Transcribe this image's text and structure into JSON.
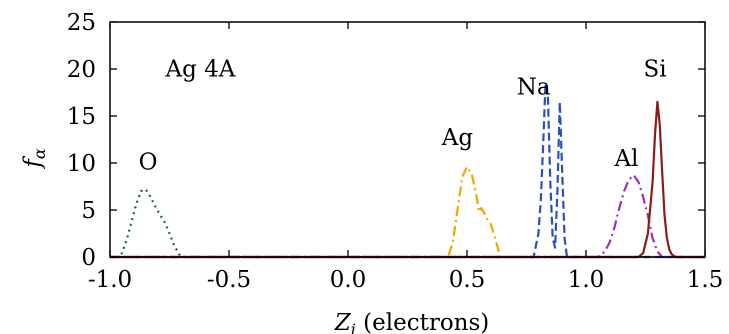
{
  "chart_data": {
    "type": "line",
    "xlabel": "Z_i (electrons)",
    "xlabel_main": "Z",
    "xlabel_sub": "i",
    "xlabel_rest": " (electrons)",
    "ylabel": "f_α",
    "ylabel_main": "f",
    "ylabel_sub": "α",
    "xlim": [
      -1.0,
      1.5
    ],
    "ylim": [
      0,
      25
    ],
    "xticks": [
      "-1.0",
      "-0.5",
      "0.0",
      "0.5",
      "1.0",
      "1.5"
    ],
    "xtick_values": [
      -1.0,
      -0.5,
      0.0,
      0.5,
      1.0,
      1.5
    ],
    "yticks": [
      "0",
      "5",
      "10",
      "15",
      "20",
      "25"
    ],
    "ytick_values": [
      0,
      5,
      10,
      15,
      20,
      25
    ],
    "grid": false,
    "legend": "none",
    "annotations": [
      {
        "text": "Ag 4A",
        "x": -0.62,
        "y": 19.2
      },
      {
        "text": "O",
        "x": -0.84,
        "y": 9.3
      },
      {
        "text": "Ag",
        "x": 0.46,
        "y": 11.9
      },
      {
        "text": "Na",
        "x": 0.78,
        "y": 17.3
      },
      {
        "text": "Al",
        "x": 1.17,
        "y": 9.7
      },
      {
        "text": "Si",
        "x": 1.29,
        "y": 19.2
      }
    ],
    "series": [
      {
        "name": "O",
        "color": "#1b6b2a",
        "dash": "2,4",
        "x": [
          -1.0,
          -0.97,
          -0.95,
          -0.93,
          -0.91,
          -0.89,
          -0.87,
          -0.85,
          -0.83,
          -0.81,
          -0.79,
          -0.77,
          -0.75,
          -0.73,
          -0.71,
          -0.69,
          -0.67,
          1.5
        ],
        "values": [
          0,
          0,
          0.4,
          1.8,
          3.7,
          5.6,
          7.0,
          7.2,
          6.4,
          5.4,
          4.5,
          3.7,
          2.5,
          1.2,
          0.3,
          0,
          0,
          0
        ]
      },
      {
        "name": "Ag",
        "color": "#f0a800",
        "dash": "10,4,2,4",
        "x": [
          -1.0,
          0.42,
          0.44,
          0.46,
          0.48,
          0.5,
          0.52,
          0.54,
          0.55,
          0.56,
          0.57,
          0.58,
          0.6,
          0.62,
          0.64,
          1.5
        ],
        "values": [
          0,
          0,
          1.5,
          5.0,
          8.5,
          9.6,
          8.8,
          6.5,
          4.8,
          5.2,
          4.8,
          4.2,
          3.5,
          1.8,
          0,
          0
        ]
      },
      {
        "name": "Na",
        "color": "#2a4fc4",
        "dash": "8,4",
        "x": [
          -1.0,
          0.78,
          0.8,
          0.81,
          0.82,
          0.83,
          0.84,
          0.85,
          0.86,
          0.87,
          0.88,
          0.89,
          0.9,
          0.91,
          0.92,
          1.5
        ],
        "values": [
          0,
          0,
          2.5,
          6.0,
          12.0,
          18.5,
          17.0,
          8.0,
          2.0,
          1.0,
          7.0,
          16.5,
          9.0,
          2.0,
          0,
          0
        ]
      },
      {
        "name": "Al",
        "color": "#9a2fc0",
        "dash": "10,4,2,4",
        "x": [
          -1.0,
          1.05,
          1.08,
          1.1,
          1.12,
          1.14,
          1.16,
          1.18,
          1.2,
          1.22,
          1.24,
          1.26,
          1.28,
          1.3,
          1.32,
          1.5
        ],
        "values": [
          0,
          0,
          0.6,
          1.6,
          3.2,
          5.2,
          7.0,
          8.2,
          8.7,
          8.0,
          6.4,
          4.4,
          2.0,
          0.6,
          0,
          0
        ]
      },
      {
        "name": "Si",
        "color": "#8b1a1a",
        "dash": "",
        "x": [
          -1.0,
          1.22,
          1.24,
          1.26,
          1.28,
          1.29,
          1.3,
          1.31,
          1.32,
          1.33,
          1.34,
          1.35,
          1.36,
          1.37,
          1.38,
          1.5
        ],
        "values": [
          0,
          0,
          0.4,
          2.5,
          8.0,
          13.0,
          16.5,
          14.0,
          9.0,
          4.5,
          2.0,
          0.8,
          0.3,
          0.1,
          0,
          0
        ]
      }
    ]
  }
}
